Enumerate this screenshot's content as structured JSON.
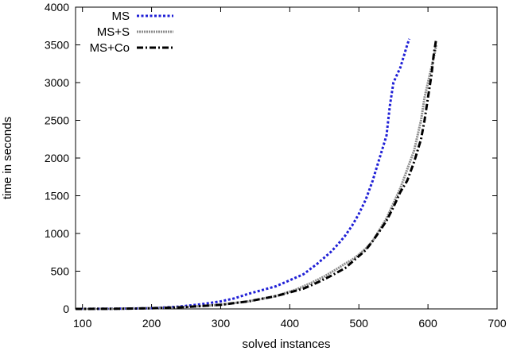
{
  "chart_data": {
    "type": "line",
    "title": "",
    "xlabel": "solved instances",
    "ylabel": "time in seconds",
    "xlim": [
      90,
      700
    ],
    "ylim": [
      0,
      4000
    ],
    "xticks": [
      100,
      200,
      300,
      400,
      500,
      600,
      700
    ],
    "yticks": [
      0,
      500,
      1000,
      1500,
      2000,
      2500,
      3000,
      3500,
      4000
    ],
    "legend": "top-left",
    "grid": false,
    "series": [
      {
        "name": "MS",
        "color": "#1f1fd6",
        "style": "dotted",
        "x": [
          90,
          150,
          200,
          240,
          270,
          300,
          320,
          340,
          360,
          380,
          395,
          410,
          420,
          430,
          440,
          450,
          460,
          470,
          480,
          490,
          500,
          510,
          520,
          530,
          540,
          545,
          550,
          555,
          560,
          565,
          570,
          573
        ],
        "y": [
          0,
          3,
          10,
          30,
          60,
          100,
          140,
          200,
          250,
          300,
          360,
          420,
          460,
          530,
          600,
          680,
          760,
          860,
          970,
          1100,
          1260,
          1450,
          1700,
          2000,
          2300,
          2700,
          3000,
          3100,
          3200,
          3350,
          3500,
          3580
        ]
      },
      {
        "name": "MS+S",
        "color": "#8c8c8c",
        "style": "dashed-fine",
        "x": [
          90,
          150,
          200,
          250,
          300,
          340,
          380,
          410,
          430,
          450,
          470,
          480,
          490,
          500,
          510,
          520,
          530,
          540,
          550,
          560,
          570,
          580,
          590,
          595,
          600,
          605,
          610,
          612
        ],
        "y": [
          0,
          2,
          8,
          25,
          55,
          100,
          170,
          260,
          340,
          430,
          540,
          600,
          650,
          720,
          800,
          900,
          1050,
          1200,
          1400,
          1600,
          1850,
          2100,
          2500,
          2800,
          3000,
          3200,
          3400,
          3500
        ]
      },
      {
        "name": "MS+Co",
        "color": "#000000",
        "style": "dash-dot",
        "x": [
          90,
          150,
          200,
          250,
          300,
          340,
          380,
          420,
          440,
          460,
          480,
          490,
          500,
          510,
          520,
          530,
          540,
          550,
          560,
          570,
          580,
          590,
          595,
          600,
          605,
          608,
          612
        ],
        "y": [
          0,
          2,
          8,
          25,
          55,
          100,
          170,
          270,
          350,
          440,
          540,
          620,
          700,
          780,
          900,
          1030,
          1170,
          1350,
          1550,
          1700,
          1950,
          2250,
          2500,
          2800,
          3100,
          3350,
          3580
        ]
      }
    ]
  }
}
